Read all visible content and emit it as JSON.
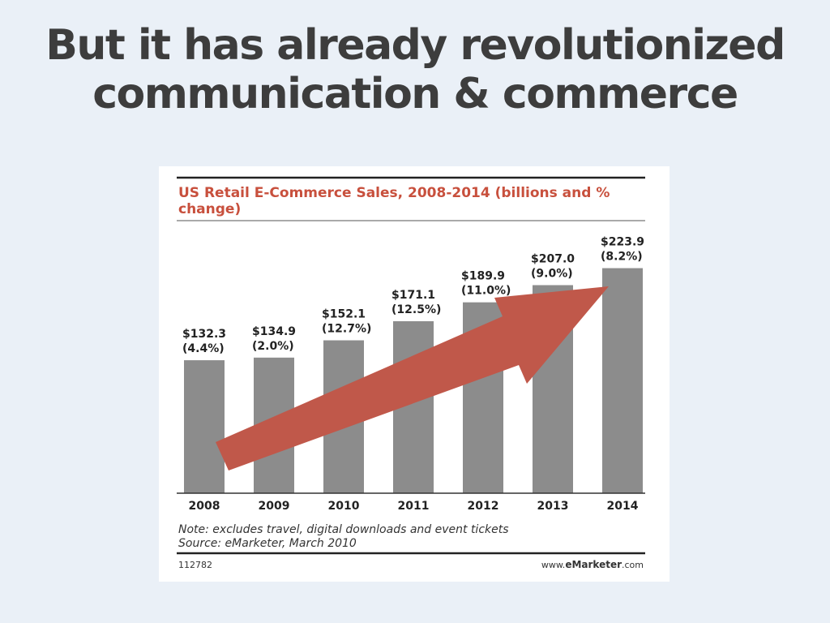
{
  "slide": {
    "title_line1": "But it has already revolutionized",
    "title_line2": "communication & commerce"
  },
  "colors": {
    "background": "#eaf0f7",
    "bar": "#8c8c8c",
    "arrow": "#c0584a",
    "chart_title": "#c8503d"
  },
  "chart_data": {
    "type": "bar",
    "title": "US Retail E-Commerce Sales, 2008-2014 (billions and % change)",
    "title_lines": [
      "US Retail E-Commerce Sales, 2008-2014 (billions and %",
      "change)"
    ],
    "categories": [
      "2008",
      "2009",
      "2010",
      "2011",
      "2012",
      "2013",
      "2014"
    ],
    "values": [
      132.3,
      134.9,
      152.1,
      171.1,
      189.9,
      207.0,
      223.9
    ],
    "value_labels": [
      "$132.3",
      "$134.9",
      "$152.1",
      "$171.1",
      "$189.9",
      "$207.0",
      "$223.9"
    ],
    "change_labels": [
      "(4.4%)",
      "(2.0%)",
      "(12.7%)",
      "(12.5%)",
      "(11.0%)",
      "(9.0%)",
      "(8.2%)"
    ],
    "ylim": [
      0,
      230
    ],
    "grid": false,
    "legend": "none",
    "annotations": {
      "arrow": "upward trend arrow from 2008 to 2014",
      "note": "Note: excludes travel, digital downloads and event tickets",
      "source": "Source: eMarketer, March 2010",
      "chart_id": "112782",
      "site": "www.eMarketer.com"
    }
  }
}
